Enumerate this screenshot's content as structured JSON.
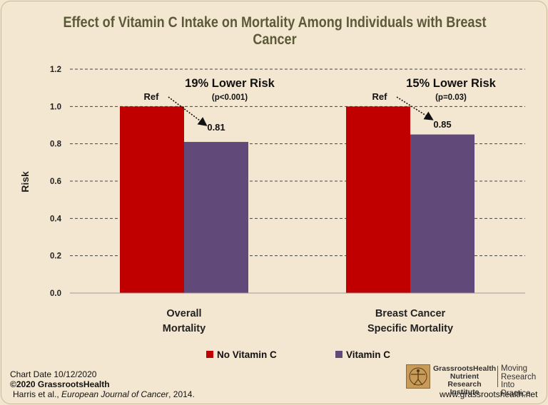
{
  "chart_data": {
    "type": "bar",
    "title": "Effect of Vitamin C Intake on Mortality Among Individuals with Breast Cancer",
    "ylabel": "Risk",
    "ylim": [
      0,
      1.2
    ],
    "yticks": [
      "0.0",
      "0.2",
      "0.4",
      "0.6",
      "0.8",
      "1.0",
      "1.2"
    ],
    "categories": [
      {
        "line1": "Overall",
        "line2": "Mortality"
      },
      {
        "line1": "Breast Cancer",
        "line2": "Specific Mortality"
      }
    ],
    "series": [
      {
        "name": "No Vitamin C",
        "color": "#c00000",
        "values": [
          1.0,
          1.0
        ]
      },
      {
        "name": "Vitamin C",
        "color": "#614a7a",
        "values": [
          0.81,
          0.85
        ]
      }
    ],
    "annotations": [
      {
        "headline": "19% Lower Risk",
        "pvalue": "(p<0.001)",
        "ref_label": "Ref",
        "value_label": "0.81"
      },
      {
        "headline": "15% Lower Risk",
        "pvalue": "(p=0.03)",
        "ref_label": "Ref",
        "value_label": "0.85"
      }
    ],
    "grid": true,
    "legend": "bottom-center"
  },
  "footer": {
    "chart_date": "Chart Date 10/12/2020",
    "copyright": "©2020 GrassrootsHealth",
    "citation_authors": "Harris et al., ",
    "citation_journal": "European Journal of Cancer",
    "citation_year": ", 2014.",
    "logo_name": "GrassrootsHealth Nutrient Research Institute",
    "logo_tagline": "Moving Research Into Practice",
    "website": "www.grassrootshealth.net"
  }
}
